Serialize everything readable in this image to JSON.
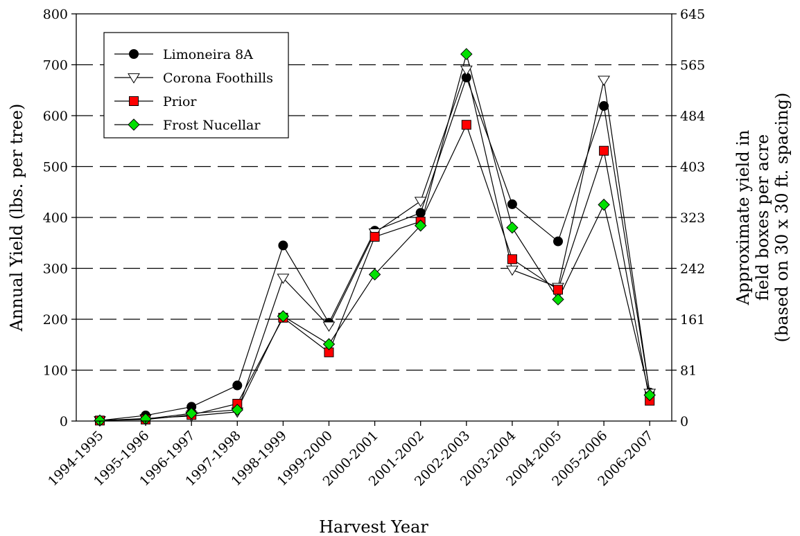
{
  "chart_data": {
    "type": "line",
    "title": "",
    "xlabel": "Harvest Year",
    "ylabel": "Annual Yield (lbs. per tree)",
    "y2label_lines": [
      "Approximate yield in",
      "field boxes per acre",
      "(based on 30 x 30 ft. spacing)"
    ],
    "categories": [
      "1994-1995",
      "1995-1996",
      "1996-1997",
      "1997-1998",
      "1998-1999",
      "1999-2000",
      "2000-2001",
      "2001-2002",
      "2002-2003",
      "2003-2004",
      "2004-2005",
      "2005-2006",
      "2006-2007"
    ],
    "ylim": [
      0,
      800
    ],
    "yticks": [
      0,
      100,
      200,
      300,
      400,
      500,
      600,
      700,
      800
    ],
    "y2ticks": [
      "0",
      "81",
      "161",
      "242",
      "323",
      "403",
      "484",
      "565",
      "645"
    ],
    "grid": "horizontal dashed",
    "legend_position": "top-left",
    "series": [
      {
        "name": "Limoneira 8A",
        "marker": "circle",
        "color": "#000000",
        "values": [
          1,
          11,
          28,
          70,
          345,
          193,
          374,
          409,
          675,
          426,
          353,
          619,
          56
        ]
      },
      {
        "name": "Corona Foothills",
        "marker": "triangle-down",
        "color": "#ffffff",
        "values": [
          1,
          5,
          10,
          18,
          281,
          187,
          370,
          432,
          690,
          297,
          263,
          670,
          55
        ]
      },
      {
        "name": "Prior",
        "marker": "square",
        "color": "#ff0000",
        "values": [
          1,
          3,
          12,
          34,
          203,
          135,
          362,
          392,
          582,
          318,
          258,
          531,
          40
        ]
      },
      {
        "name": "Frost Nucellar",
        "marker": "diamond",
        "color": "#00e000",
        "values": [
          1,
          4,
          15,
          22,
          206,
          151,
          288,
          384,
          721,
          380,
          239,
          425,
          51
        ]
      }
    ]
  }
}
